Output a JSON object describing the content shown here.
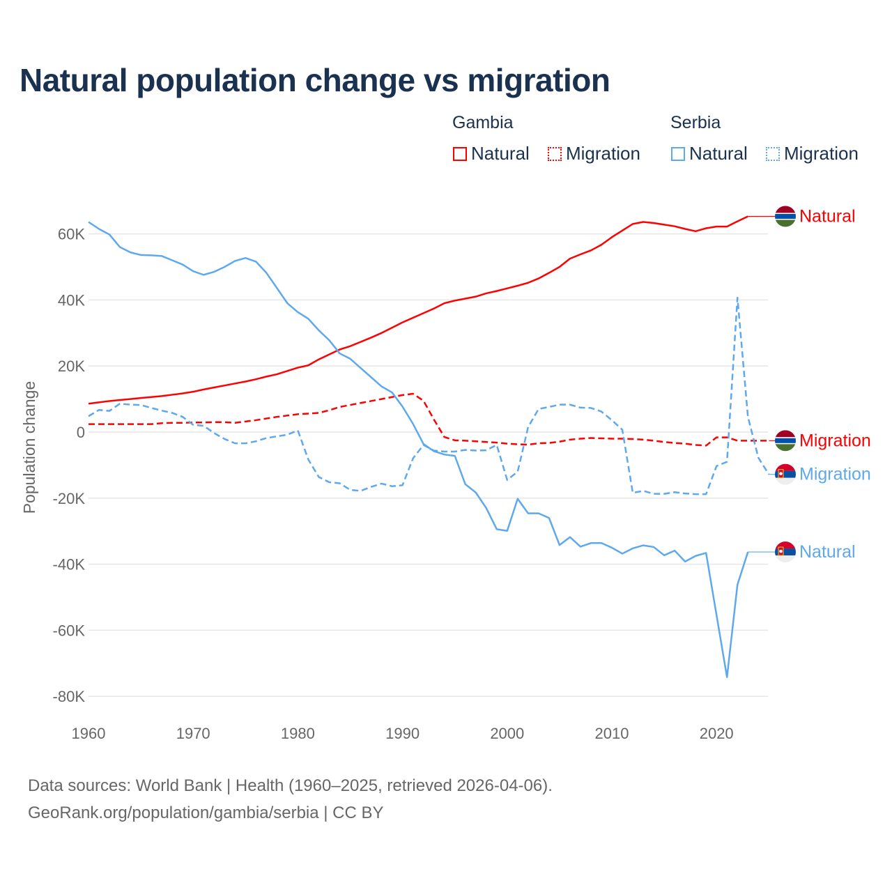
{
  "title": "Natural population change vs migration",
  "legend": {
    "groups": [
      {
        "name": "Gambia",
        "items": [
          {
            "label": "Natural",
            "style": "solid",
            "color": "#ff0000"
          },
          {
            "label": "Migration",
            "style": "dotted",
            "color": "#ff0000"
          }
        ]
      },
      {
        "name": "Serbia",
        "items": [
          {
            "label": "Natural",
            "style": "solid",
            "color": "#5ea8ee"
          },
          {
            "label": "Migration",
            "style": "dotted",
            "color": "#5ea8ee"
          }
        ]
      }
    ]
  },
  "footer": {
    "line1": "Data sources: World Bank | Health (1960–2025, retrieved 2026-04-06).",
    "line2": "GeoRank.org/population/gambia/serbia | CC BY"
  },
  "chart_data": {
    "type": "line",
    "title": "Natural population change vs migration",
    "xlabel": "",
    "ylabel": "Population change",
    "xlim": [
      1960,
      2025
    ],
    "ylim": [
      -80000,
      65000
    ],
    "x_ticks": [
      1960,
      1970,
      1980,
      1990,
      2000,
      2010,
      2020
    ],
    "y_ticks": [
      60000,
      40000,
      20000,
      0,
      -20000,
      -40000,
      -60000,
      -80000
    ],
    "y_tick_labels": [
      "60K",
      "40K",
      "20K",
      "0",
      "-20K",
      "-40K",
      "-60K",
      "-80K"
    ],
    "grid": true,
    "legend_position": "top-right",
    "start_year": 1960,
    "series": [
      {
        "name": "Gambia Natural",
        "end_label": "Natural",
        "country": "Gambia",
        "color": "#ff0000",
        "dash": false,
        "values": [
          8.6,
          9.0,
          9.4,
          9.7,
          10.0,
          10.3,
          10.6,
          10.9,
          11.3,
          11.7,
          12.2,
          12.9,
          13.5,
          14.1,
          14.7,
          15.3,
          16.0,
          16.8,
          17.5,
          18.5,
          19.5,
          20.2,
          22.0,
          23.5,
          25.0,
          26.0,
          27.3,
          28.6,
          30.0,
          31.6,
          33.2,
          34.6,
          36.0,
          37.4,
          39.0,
          39.8,
          40.4,
          41.0,
          42.0,
          42.7,
          43.5,
          44.3,
          45.2,
          46.5,
          48.2,
          50.0,
          52.5,
          53.8,
          55.0,
          56.7,
          59.0,
          61.0,
          63.0,
          63.6,
          63.3,
          62.8,
          62.3,
          61.5,
          60.8,
          61.7,
          62.2,
          62.2,
          63.8,
          65.3
        ]
      },
      {
        "name": "Gambia Migration",
        "end_label": "Migration",
        "country": "Gambia",
        "color": "#ff0000",
        "dash": true,
        "values": [
          2.4,
          2.4,
          2.4,
          2.4,
          2.4,
          2.4,
          2.4,
          2.7,
          2.8,
          2.8,
          2.9,
          2.9,
          3.0,
          3.0,
          2.8,
          3.2,
          3.6,
          4.1,
          4.6,
          5.0,
          5.4,
          5.6,
          5.8,
          6.6,
          7.6,
          8.2,
          8.8,
          9.4,
          10.0,
          10.6,
          11.2,
          11.6,
          9.5,
          3.8,
          -1.5,
          -2.5,
          -2.6,
          -2.8,
          -3.0,
          -3.2,
          -3.5,
          -3.7,
          -3.8,
          -3.4,
          -3.3,
          -2.9,
          -2.3,
          -2.0,
          -1.8,
          -1.9,
          -2.0,
          -2.0,
          -2.1,
          -2.3,
          -2.6,
          -3.0,
          -3.3,
          -3.5,
          -3.9,
          -4.1,
          -1.6,
          -1.6,
          -2.6,
          -2.6,
          -2.6,
          -2.6
        ]
      },
      {
        "name": "Serbia Migration",
        "end_label": "Migration",
        "country": "Serbia",
        "color": "#5ea8ee",
        "dash": true,
        "values": [
          4.8,
          6.7,
          6.4,
          8.6,
          8.3,
          8.2,
          7.3,
          6.5,
          5.8,
          4.6,
          2.2,
          1.9,
          -0.3,
          -2.1,
          -3.4,
          -3.4,
          -2.8,
          -1.8,
          -1.3,
          -0.8,
          0.5,
          -8.3,
          -13.6,
          -15.2,
          -15.5,
          -17.5,
          -17.8,
          -16.6,
          -15.6,
          -16.4,
          -16.1,
          -8.0,
          -3.9,
          -5.6,
          -5.9,
          -5.9,
          -5.4,
          -5.6,
          -5.5,
          -3.9,
          -14.5,
          -12.0,
          1.5,
          7.0,
          7.6,
          8.3,
          8.3,
          7.4,
          7.3,
          6.2,
          3.6,
          0.7,
          -18.4,
          -17.8,
          -18.7,
          -18.7,
          -18.2,
          -18.6,
          -18.8,
          -18.8,
          -10.3,
          -9.0,
          40.7,
          4.6,
          -7.8,
          -12.8
        ]
      },
      {
        "name": "Serbia Natural",
        "end_label": "Natural",
        "country": "Serbia",
        "color": "#5ea8ee",
        "dash": false,
        "values": [
          63.6,
          61.5,
          59.8,
          56.0,
          54.4,
          53.6,
          53.5,
          53.3,
          52.0,
          50.7,
          48.7,
          47.6,
          48.5,
          50.0,
          51.8,
          52.7,
          51.6,
          48.2,
          43.6,
          39.0,
          36.3,
          34.3,
          30.8,
          27.8,
          23.8,
          22.2,
          19.4,
          16.6,
          13.8,
          12.0,
          7.7,
          2.5,
          -3.6,
          -5.8,
          -6.8,
          -7.2,
          -15.8,
          -18.3,
          -23.0,
          -29.4,
          -29.9,
          -20.2,
          -24.6,
          -24.6,
          -26.0,
          -34.2,
          -31.8,
          -34.7,
          -33.6,
          -33.6,
          -35.0,
          -36.8,
          -35.2,
          -34.3,
          -34.8,
          -37.3,
          -35.9,
          -39.2,
          -37.5,
          -36.6,
          -55.4,
          -74.2,
          -46.2,
          -36.3
        ]
      }
    ],
    "value_unit": "thousands"
  }
}
